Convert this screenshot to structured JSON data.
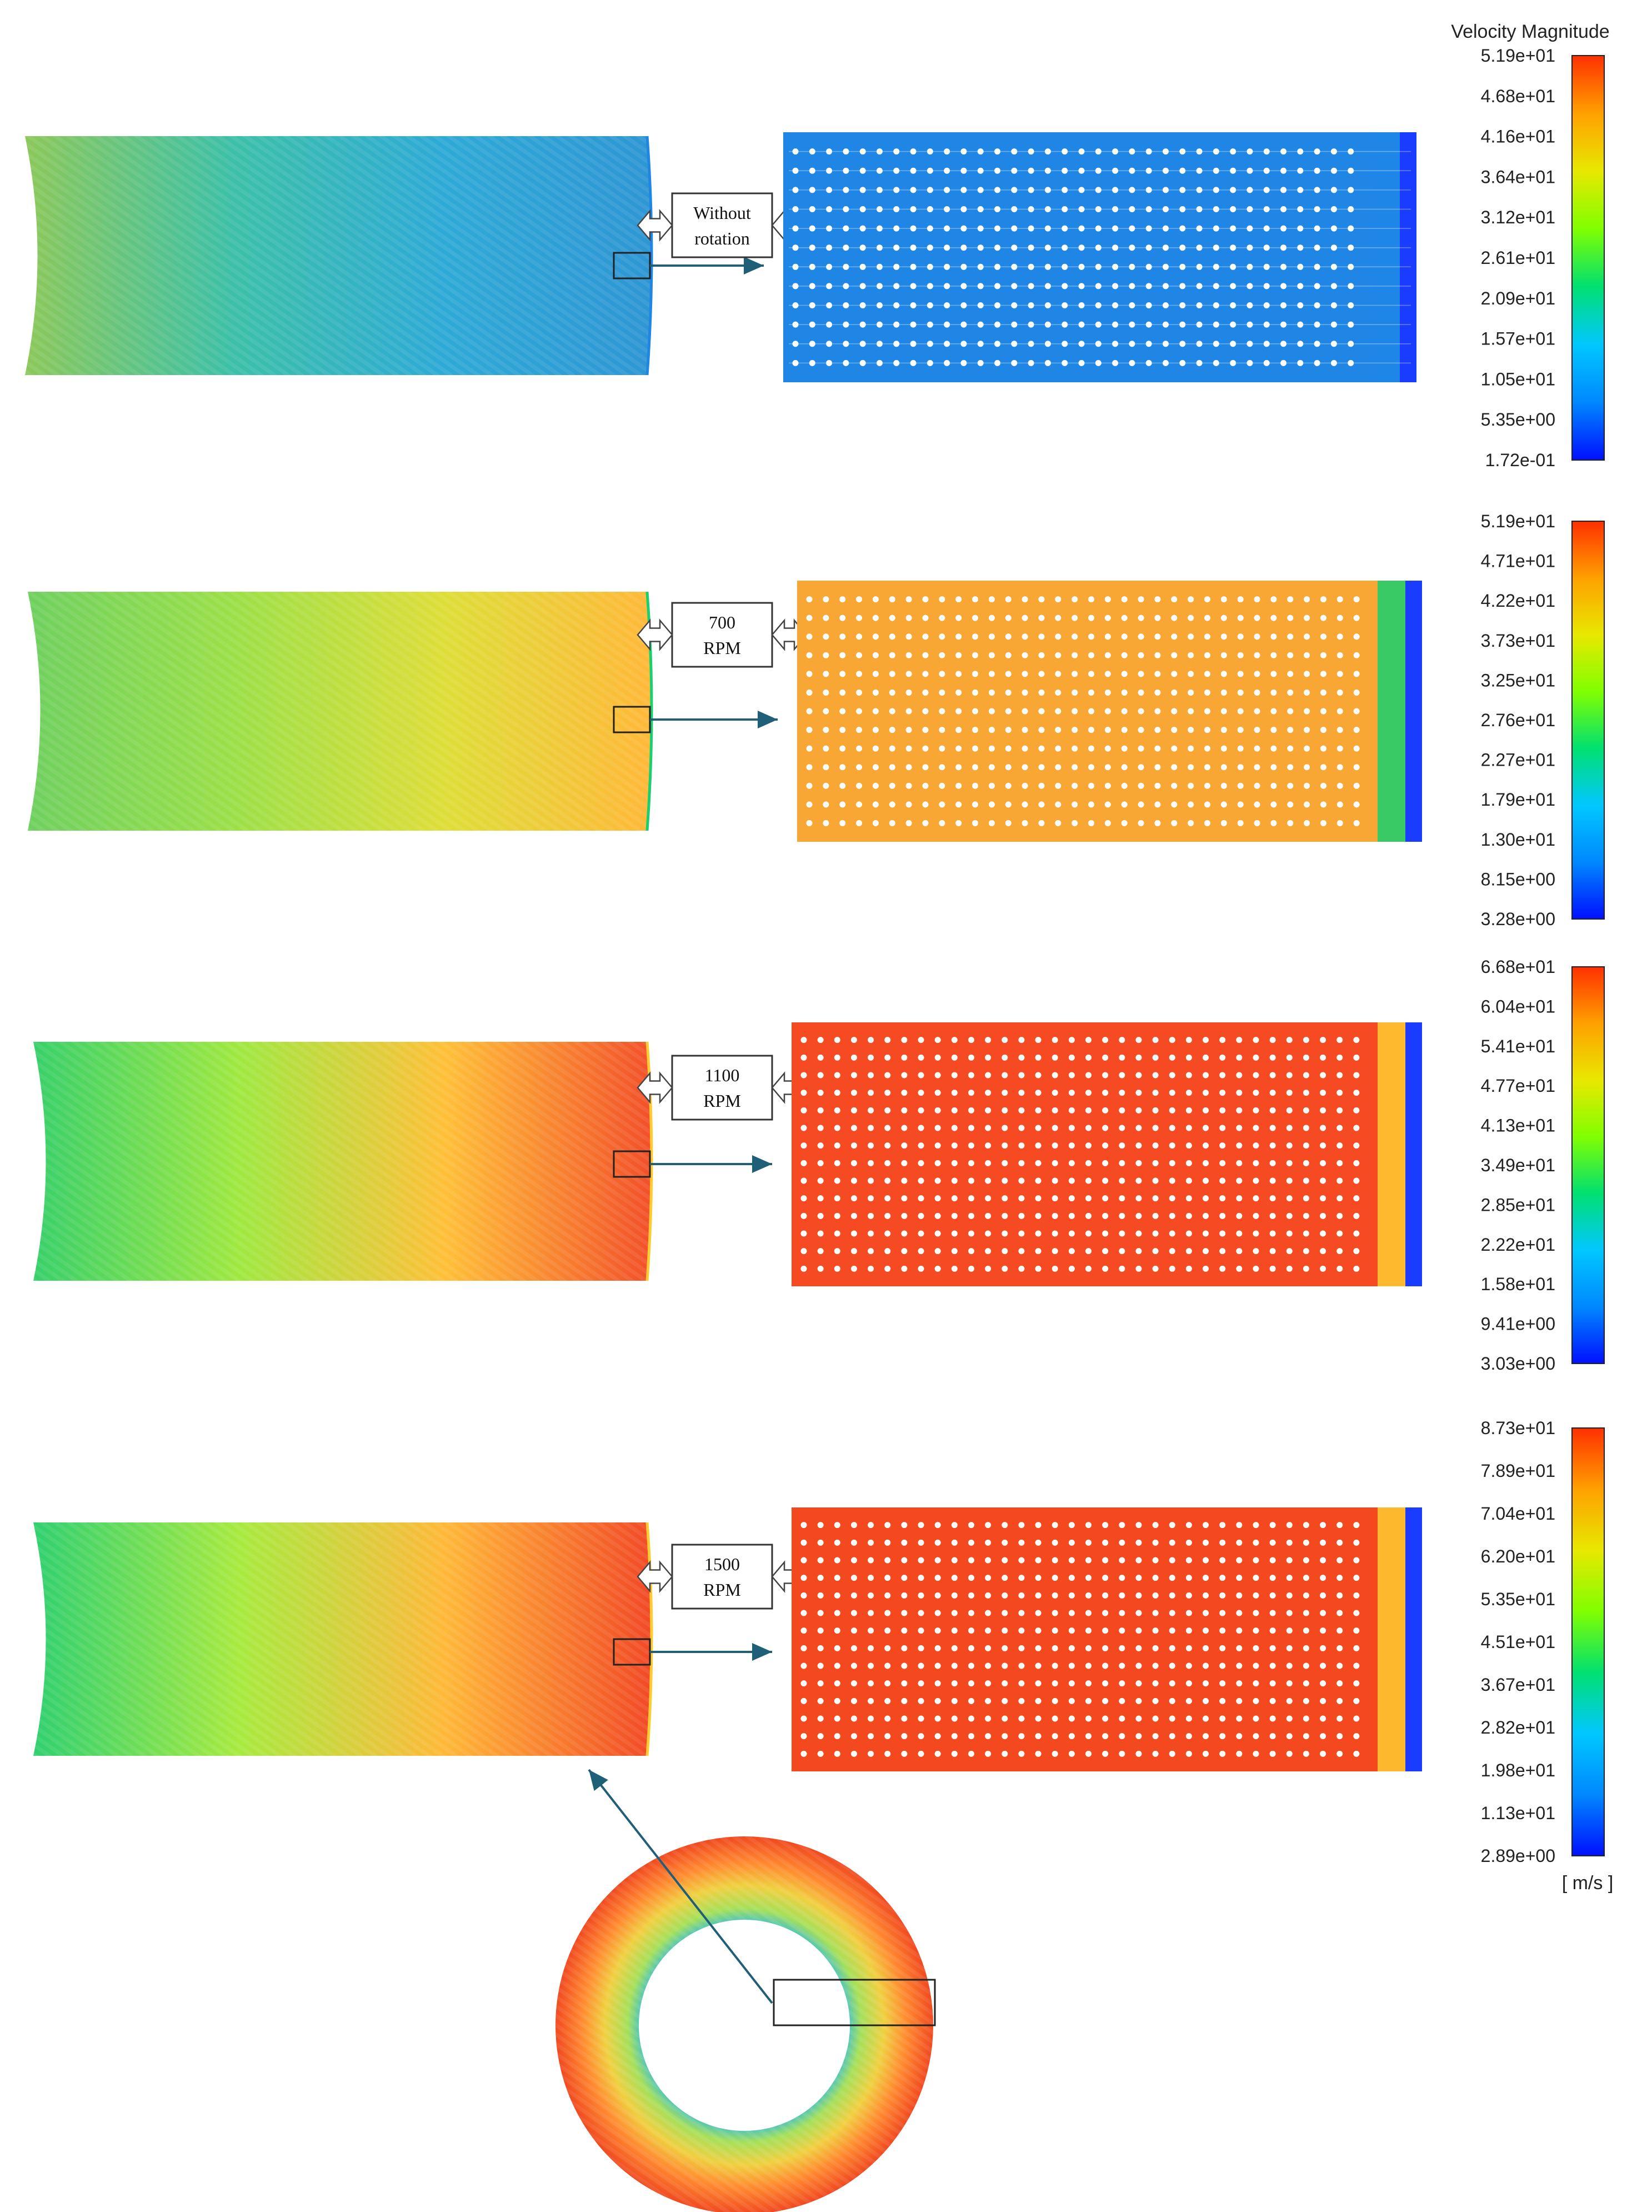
{
  "colorbar": {
    "title": "Velocity Magnitude",
    "unit": "[ m/s ]",
    "colors": [
      "#0010ff",
      "#0088ff",
      "#00c8ff",
      "#00e070",
      "#80ff00",
      "#e8e800",
      "#ffa000",
      "#ff3000"
    ]
  },
  "panels": [
    {
      "label_lines": [
        "Without",
        "rotation"
      ],
      "scale_ticks": [
        "5.19e+01",
        "4.68e+01",
        "4.16e+01",
        "3.64e+01",
        "3.12e+01",
        "2.61e+01",
        "2.09e+01",
        "1.57e+01",
        "1.05e+01",
        "5.35e+00",
        "1.72e-01"
      ],
      "band_colors": [
        "#8cc85a",
        "#3cc0a8",
        "#2eaad6",
        "#2e96d4"
      ],
      "zoom_bg": "#1f86e6",
      "zoom_edge": "#1f86e6",
      "hole_rows": 12
    },
    {
      "label_lines": [
        "700",
        "RPM"
      ],
      "scale_ticks": [
        "5.19e+01",
        "4.71e+01",
        "4.22e+01",
        "3.73e+01",
        "3.25e+01",
        "2.76e+01",
        "2.27e+01",
        "1.79e+01",
        "1.30e+01",
        "8.15e+00",
        "3.28e+00"
      ],
      "band_colors": [
        "#6fd060",
        "#9ce048",
        "#dede38",
        "#ffb838"
      ],
      "zoom_bg": "#f8a634",
      "zoom_edge": "#18d070",
      "hole_rows": 13
    },
    {
      "label_lines": [
        "1100",
        "RPM"
      ],
      "scale_ticks": [
        "6.68e+01",
        "6.04e+01",
        "5.41e+01",
        "4.77e+01",
        "4.13e+01",
        "3.49e+01",
        "2.85e+01",
        "2.22e+01",
        "1.58e+01",
        "9.41e+00",
        "3.03e+00"
      ],
      "band_colors": [
        "#38d06a",
        "#a0e840",
        "#ffc038",
        "#f2502a"
      ],
      "zoom_bg": "#f54a22",
      "zoom_edge": "#ffcc30",
      "hole_rows": 14
    },
    {
      "label_lines": [
        "1500",
        "RPM"
      ],
      "scale_ticks": [
        "8.73e+01",
        "7.89e+01",
        "7.04e+01",
        "6.20e+01",
        "5.35e+01",
        "4.51e+01",
        "3.67e+01",
        "2.82e+01",
        "1.98e+01",
        "1.13e+01",
        "2.89e+00"
      ],
      "band_colors": [
        "#30d070",
        "#a8ea40",
        "#ffb838",
        "#f14a26"
      ],
      "zoom_bg": "#f4481f",
      "zoom_edge": "#ffcc30",
      "hole_rows": 14
    }
  ],
  "annulus": {
    "colors": [
      "#ffffff",
      "#58c8b0",
      "#a6e05a",
      "#f0d040",
      "#ff8a30",
      "#f04a20"
    ]
  }
}
